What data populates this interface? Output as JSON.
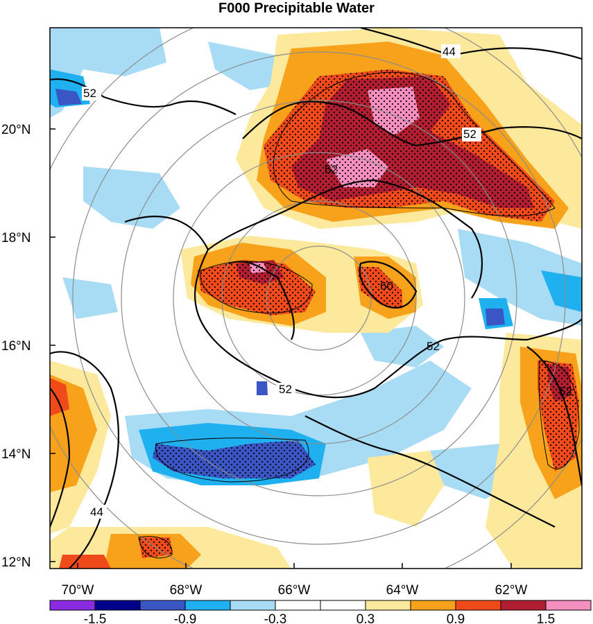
{
  "title": "F000 Precipitable Water",
  "latitude_labels": [
    "20°N",
    "18°N",
    "16°N",
    "14°N",
    "12°N"
  ],
  "longitude_labels": [
    "70°W",
    "68°W",
    "66°W",
    "64°W",
    "62°W"
  ],
  "contour_labels": [
    "44",
    "52",
    "52",
    "52",
    "60",
    "52",
    "52",
    "52",
    "44"
  ],
  "colorbar": {
    "colors": [
      "#8a2be2",
      "#00008b",
      "#3a55c4",
      "#1fb0f0",
      "#a8dcf5",
      "#ffffff",
      "#ffffff",
      "#fde99b",
      "#f7a21a",
      "#f04a1b",
      "#b01e2f",
      "#f58fbf"
    ],
    "labels": [
      "-1.5",
      "-0.9",
      "-0.3",
      "0.3",
      "0.9",
      "1.5"
    ]
  }
}
